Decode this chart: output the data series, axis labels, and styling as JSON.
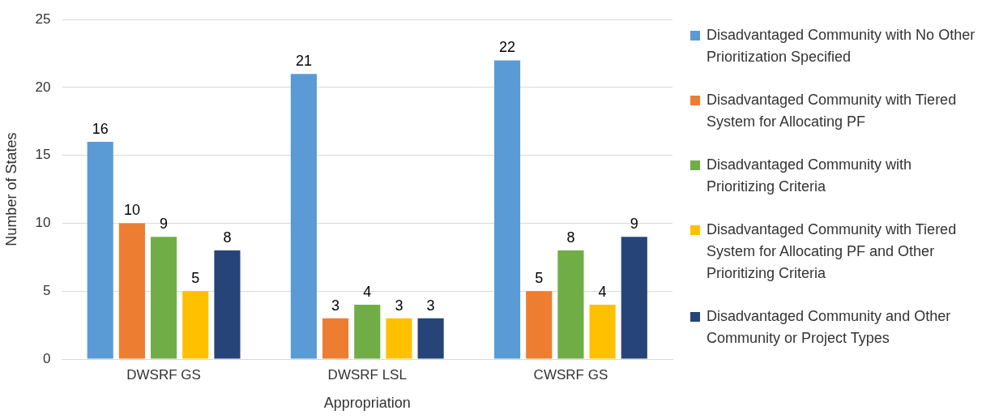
{
  "chart_data": {
    "type": "bar",
    "xlabel": "Appropriation",
    "ylabel": "Number of States",
    "categories": [
      "DWSRF GS",
      "DWSRF LSL",
      "CWSRF GS"
    ],
    "series": [
      {
        "name": "Disadvantaged Community with No Other Prioritization Specified",
        "color": "#5b9bd5",
        "values": [
          16,
          21,
          22
        ]
      },
      {
        "name": "Disadvantaged Community with Tiered System for Allocating PF",
        "color": "#ed7d31",
        "values": [
          10,
          3,
          5
        ]
      },
      {
        "name": "Disadvantaged Community with Prioritizing Criteria",
        "color": "#70ad47",
        "values": [
          9,
          4,
          8
        ]
      },
      {
        "name": "Disadvantaged Community with Tiered System for Allocating PF and Other Prioritizing Criteria",
        "color": "#ffc000",
        "values": [
          5,
          3,
          4
        ]
      },
      {
        "name": "Disadvantaged Community and Other Community or Project Types",
        "color": "#264478",
        "values": [
          8,
          3,
          9
        ]
      }
    ],
    "ylim": [
      0,
      25
    ],
    "yticks": [
      0,
      5,
      10,
      15,
      20,
      25
    ],
    "grid": "y",
    "legend": "right",
    "data_labels": true
  }
}
